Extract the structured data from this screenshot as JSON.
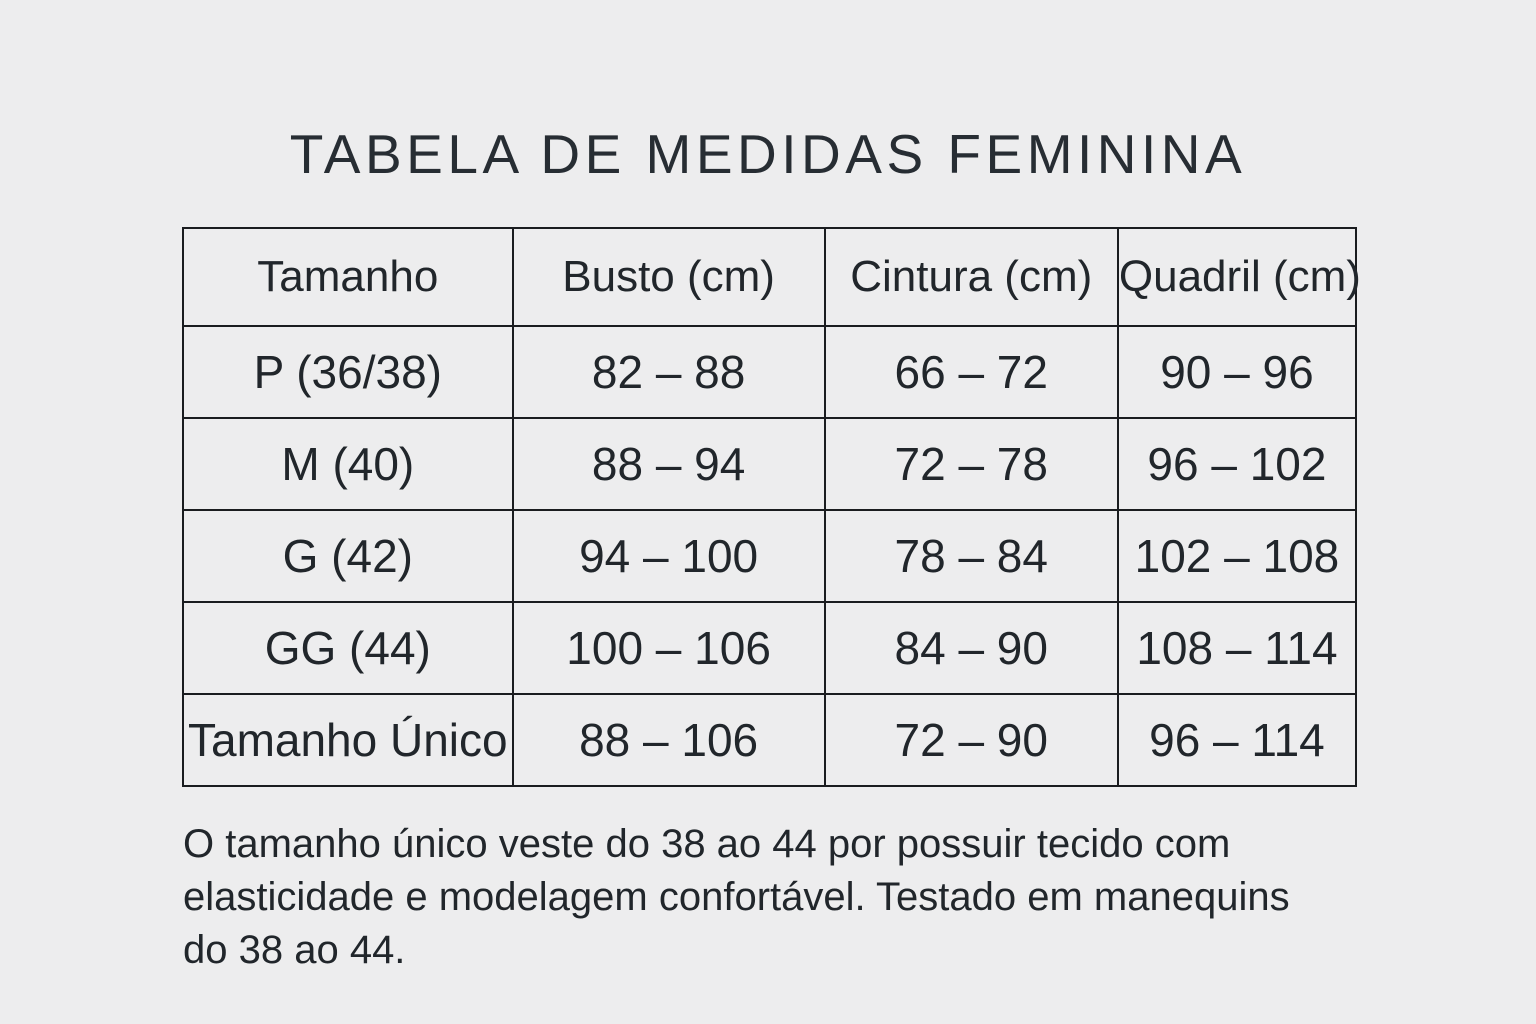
{
  "page": {
    "title": "TABELA DE MEDIDAS FEMININA",
    "background_color": "#ededee",
    "text_color": "#21262b",
    "border_color": "#1a1c1f"
  },
  "table": {
    "headers": [
      "Tamanho",
      "Busto (cm)",
      "Cintura (cm)",
      "Quadril (cm)"
    ],
    "rows": [
      [
        "P (36/38)",
        "82 – 88",
        "66 – 72",
        "90 – 96"
      ],
      [
        "M (40)",
        "88 – 94",
        "72 – 78",
        "96 – 102"
      ],
      [
        "G (42)",
        "94 – 100",
        "78 – 84",
        "102 – 108"
      ],
      [
        "GG (44)",
        "100 – 106",
        "84 – 90",
        "108 – 114"
      ],
      [
        "Tamanho Único",
        "88 – 106",
        "72 – 90",
        "96 – 114"
      ]
    ]
  },
  "note": {
    "lines": [
      "O tamanho único veste do 38 ao 44 por possuir tecido com",
      "elasticidade e modelagem confortável. Testado em manequins",
      "do 38 ao 44."
    ]
  }
}
